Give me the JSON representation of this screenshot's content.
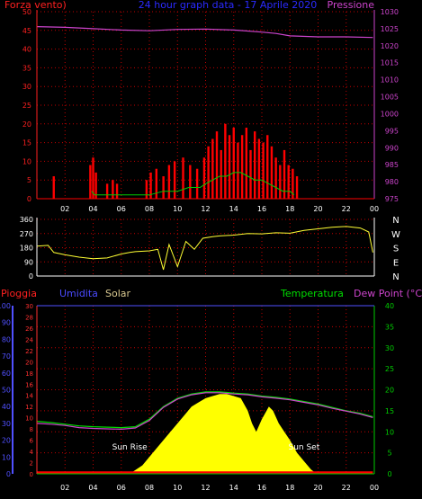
{
  "chart_data": [
    {
      "type": "line",
      "title": "24 hour graph data - 17 Aprile 2020",
      "left_label": "Forza vento)",
      "right_label": "Pressione",
      "x_ticks": [
        "02",
        "04",
        "06",
        "08",
        "10",
        "12",
        "14",
        "16",
        "18",
        "20",
        "22",
        "00"
      ],
      "ylim_left": [
        0,
        50
      ],
      "yticks_left": [
        0,
        5,
        10,
        15,
        20,
        25,
        30,
        35,
        40,
        45,
        50
      ],
      "ylim_right": [
        975,
        1030
      ],
      "yticks_right": [
        975,
        980,
        985,
        990,
        995,
        1000,
        1005,
        1010,
        1015,
        1020,
        1025,
        1030
      ],
      "colors": {
        "gust": "#ff0000",
        "average": "#00cc00",
        "pressure": "#cc44cc",
        "grid": "#c00000",
        "axis_left": "#ff2020",
        "axis_right": "#cc44cc"
      },
      "series": [
        {
          "key": "pressure",
          "axis": "right",
          "hours": [
            0,
            2,
            4,
            6,
            8,
            10,
            12,
            14,
            16,
            17,
            18,
            20,
            22,
            23.9
          ],
          "values": [
            1025.6,
            1025.4,
            1025.0,
            1024.6,
            1024.4,
            1024.8,
            1024.9,
            1024.6,
            1024.0,
            1023.6,
            1022.9,
            1022.6,
            1022.6,
            1022.4
          ]
        },
        {
          "key": "gust",
          "axis": "left",
          "hours": [
            1.2,
            3.8,
            4.0,
            4.2,
            5.0,
            5.4,
            5.7,
            7.8,
            8.1,
            8.5,
            9.0,
            9.4,
            9.8,
            10.4,
            10.9,
            11.4,
            11.9,
            12.2,
            12.5,
            12.8,
            13.1,
            13.4,
            13.7,
            14.0,
            14.3,
            14.6,
            14.9,
            15.2,
            15.5,
            15.8,
            16.1,
            16.4,
            16.7,
            17.0,
            17.3,
            17.6,
            17.9,
            18.2,
            18.5
          ],
          "values": [
            6,
            9,
            11,
            7,
            4,
            5,
            4,
            5,
            7,
            8,
            6,
            9,
            10,
            11,
            9,
            8,
            11,
            14,
            16,
            18,
            13,
            20,
            17,
            19,
            15,
            17,
            19,
            13,
            18,
            16,
            15,
            17,
            14,
            11,
            9,
            13,
            9,
            8,
            6
          ]
        },
        {
          "key": "average",
          "axis": "left",
          "hours": [
            3.9,
            4.1,
            8.0,
            9.0,
            10.0,
            10.8,
            11.6,
            12.0,
            12.5,
            13.0,
            13.5,
            14.0,
            14.5,
            15.0,
            15.5,
            16.0,
            16.5,
            17.0,
            17.5,
            18.0,
            18.3
          ],
          "values": [
            2,
            1,
            1,
            2,
            2,
            3,
            3,
            4,
            5,
            6,
            6,
            7,
            7,
            6,
            5,
            5,
            4,
            3,
            2,
            2,
            1
          ]
        }
      ]
    },
    {
      "type": "line",
      "ylim": [
        0,
        360
      ],
      "yticks": [
        0,
        90,
        180,
        270,
        360
      ],
      "direction_labels": [
        "N",
        "W",
        "S",
        "E",
        "N"
      ],
      "colors": {
        "direction": "#ffff33",
        "grid": "#c00000",
        "axis": "#ffffff"
      },
      "series": [
        {
          "key": "wind_direction",
          "hours": [
            0,
            0.8,
            1.2,
            2,
            3,
            4,
            5,
            6,
            6.6,
            7,
            8,
            8.6,
            9,
            9.4,
            10,
            10.6,
            11.2,
            11.8,
            12.5,
            13,
            14,
            15,
            16,
            17,
            18,
            19,
            20,
            21,
            22,
            23,
            23.6,
            23.9
          ],
          "values": [
            190,
            195,
            150,
            135,
            120,
            110,
            115,
            140,
            150,
            155,
            160,
            170,
            40,
            200,
            60,
            220,
            170,
            240,
            250,
            255,
            260,
            270,
            268,
            275,
            272,
            290,
            300,
            310,
            315,
            305,
            280,
            150
          ]
        }
      ]
    },
    {
      "type": "area",
      "left_label": "Pioggia",
      "humidity_label": "Umidita",
      "solar_label": "Solar",
      "temperature_label": "Temperatura",
      "dewpoint_label": "Dew Point (°C)",
      "sunrise_label": "Sun Rise",
      "sunset_label": "Sun Set",
      "sunrise_hour": 6.6,
      "sunset_hour": 19.9,
      "x_ticks": [
        "02",
        "04",
        "06",
        "08",
        "10",
        "12",
        "14",
        "16",
        "18",
        "20",
        "22",
        "00"
      ],
      "ylim_humidity": [
        0,
        100
      ],
      "yticks_humidity": [
        0,
        10,
        20,
        30,
        40,
        50,
        60,
        70,
        80,
        90,
        100
      ],
      "ylim_rain": [
        0,
        30
      ],
      "yticks_rain": [
        0,
        2,
        4,
        6,
        8,
        10,
        12,
        14,
        16,
        18,
        20,
        22,
        24,
        26,
        28,
        30
      ],
      "ylim_temp": [
        0,
        40
      ],
      "yticks_temp": [
        0,
        5,
        10,
        15,
        20,
        25,
        30,
        35,
        40
      ],
      "colors": {
        "temperature": "#00dd00",
        "dewpoint": "#cc44cc",
        "solar": "#ffff00",
        "rain": "#ff0000",
        "humidity": "#3333ff",
        "grid": "#c00000",
        "axis_temp": "#00cc00",
        "axis_rain": "#ff3030",
        "axis_hum": "#5050ff"
      },
      "series": [
        {
          "key": "temperature",
          "axis": "temp",
          "hours": [
            0,
            1,
            2,
            3,
            4,
            5,
            6,
            7,
            8,
            9,
            10,
            11,
            12,
            13,
            14,
            15,
            16,
            17,
            18,
            19,
            20,
            21,
            22,
            23,
            23.9
          ],
          "values": [
            12.5,
            12.2,
            11.8,
            11.4,
            11.2,
            11.1,
            11.0,
            11.2,
            13.0,
            16.0,
            18.0,
            19.0,
            19.5,
            19.5,
            19.2,
            19.0,
            18.5,
            18.2,
            17.8,
            17.2,
            16.6,
            15.8,
            15.0,
            14.4,
            13.6
          ]
        },
        {
          "key": "dewpoint",
          "axis": "temp",
          "hours": [
            0,
            1,
            2,
            3,
            4,
            5,
            6,
            7,
            8,
            9,
            10,
            11,
            12,
            13,
            14,
            15,
            16,
            17,
            18,
            19,
            20,
            21,
            22,
            23,
            23.9
          ],
          "values": [
            12.0,
            11.8,
            11.5,
            11.0,
            10.8,
            10.7,
            10.6,
            10.9,
            12.7,
            15.8,
            17.8,
            18.8,
            19.3,
            19.3,
            19.0,
            18.8,
            18.3,
            18.0,
            17.6,
            17.0,
            16.4,
            15.6,
            14.9,
            14.2,
            13.4
          ]
        },
        {
          "key": "solar",
          "axis": "temp",
          "hours": [
            6.6,
            7.5,
            8.5,
            9.5,
            10.5,
            11.0,
            11.5,
            12.0,
            12.5,
            13.0,
            13.5,
            14.0,
            14.5,
            15.0,
            15.3,
            15.6,
            16.0,
            16.5,
            16.8,
            17.2,
            17.6,
            18.0,
            18.5,
            19.0,
            19.5,
            19.9
          ],
          "values": [
            0,
            2,
            6,
            10,
            14,
            16,
            17,
            18,
            18.5,
            19,
            19,
            18.5,
            18,
            15,
            12,
            10,
            13,
            16,
            15,
            12,
            10,
            8,
            5,
            3,
            1,
            0
          ]
        },
        {
          "key": "rain",
          "axis": "rain",
          "hours": [
            0,
            23.9
          ],
          "values": [
            0.2,
            0.2
          ]
        }
      ]
    }
  ]
}
